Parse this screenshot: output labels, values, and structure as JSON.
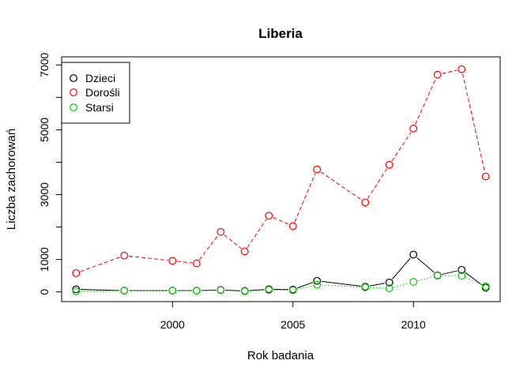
{
  "chart_data": {
    "type": "line",
    "title": "Liberia",
    "xlabel": "Rok badania",
    "ylabel": "Liczba zachorowań",
    "xlim": [
      1995.4,
      2013.6
    ],
    "ylim": [
      -300,
      7250
    ],
    "xticks": [
      2000,
      2005,
      2010
    ],
    "xtick_labels": [
      "2000",
      "2005",
      "2010"
    ],
    "yticks": [
      0,
      1000,
      3000,
      5000,
      7000
    ],
    "ytick_labels": [
      "0",
      "1000",
      "3000",
      "5000",
      "7000"
    ],
    "yticks_minor": [
      2000,
      4000,
      6000
    ],
    "grid": false,
    "legend_position": "top-left",
    "x": [
      1996,
      1998,
      2000,
      2001,
      2002,
      2003,
      2004,
      2005,
      2006,
      2008,
      2009,
      2010,
      2011,
      2012,
      2013
    ],
    "series": [
      {
        "name": "Dzieci",
        "color": "#000000",
        "line": "solid",
        "values": [
          80,
          40,
          40,
          40,
          60,
          30,
          80,
          70,
          340,
          160,
          290,
          1150,
          510,
          680,
          130
        ]
      },
      {
        "name": "Dorośli",
        "color": "#ff0000",
        "line": "dashed",
        "values": [
          580,
          1120,
          960,
          880,
          1850,
          1250,
          2350,
          2030,
          3780,
          2760,
          3920,
          5040,
          6700,
          6870,
          3560
        ]
      },
      {
        "name": "Starsi",
        "color": "#00cd00",
        "line": "dotted",
        "values": [
          20,
          40,
          40,
          40,
          50,
          20,
          60,
          50,
          220,
          140,
          110,
          310,
          500,
          500,
          170
        ]
      }
    ]
  }
}
